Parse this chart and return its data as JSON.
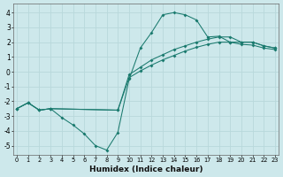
{
  "xlabel": "Humidex (Indice chaleur)",
  "xlim": [
    -0.3,
    23.3
  ],
  "ylim": [
    -5.6,
    4.6
  ],
  "xticks": [
    0,
    1,
    2,
    3,
    4,
    5,
    6,
    7,
    8,
    9,
    10,
    11,
    12,
    13,
    14,
    15,
    16,
    17,
    18,
    19,
    20,
    21,
    22,
    23
  ],
  "yticks": [
    -5,
    -4,
    -3,
    -2,
    -1,
    0,
    1,
    2,
    3,
    4
  ],
  "bg_color": "#cde8eb",
  "grid_color": "#b8d8db",
  "line_color": "#1a7a6e",
  "line1_x": [
    0,
    1,
    2,
    3,
    4,
    5,
    6,
    7,
    8,
    9,
    10,
    11,
    12,
    13,
    14,
    15,
    16,
    17,
    18,
    19,
    20,
    21,
    22,
    23
  ],
  "line1_y": [
    -2.5,
    -2.1,
    -2.6,
    -2.5,
    -3.1,
    -3.6,
    -4.2,
    -5.0,
    -5.3,
    -4.1,
    -0.5,
    1.6,
    2.65,
    3.85,
    4.0,
    3.85,
    3.5,
    2.35,
    2.4,
    2.0,
    2.0,
    2.0,
    1.75,
    1.6
  ],
  "line2_x": [
    0,
    1,
    2,
    3,
    9,
    10,
    11,
    12,
    13,
    14,
    15,
    16,
    17,
    18,
    19,
    20,
    21,
    22,
    23
  ],
  "line2_y": [
    -2.5,
    -2.1,
    -2.6,
    -2.5,
    -2.6,
    -0.2,
    0.3,
    0.8,
    1.15,
    1.5,
    1.75,
    2.0,
    2.2,
    2.35,
    2.35,
    2.0,
    2.0,
    1.75,
    1.6
  ],
  "line3_x": [
    0,
    1,
    2,
    3,
    9,
    10,
    11,
    12,
    13,
    14,
    15,
    16,
    17,
    18,
    19,
    20,
    21,
    22,
    23
  ],
  "line3_y": [
    -2.5,
    -2.1,
    -2.6,
    -2.5,
    -2.6,
    -0.4,
    0.05,
    0.45,
    0.8,
    1.1,
    1.4,
    1.65,
    1.85,
    2.0,
    2.0,
    1.85,
    1.8,
    1.6,
    1.5
  ]
}
